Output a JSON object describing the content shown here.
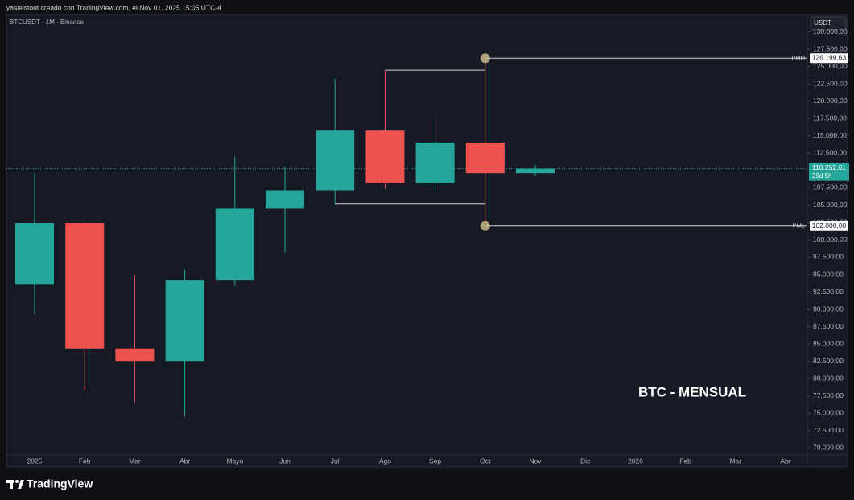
{
  "header": {
    "caption": "yasielstout creado con TradingView.com, el Nov 01, 2025 15:05 UTC-4",
    "symbol": "BTCUSDT · 1M · Binance"
  },
  "chart_data": {
    "type": "candlestick",
    "title": "BTC - MENSUAL",
    "y_axis_unit": "USDT",
    "categories": [
      "2025",
      "Feb",
      "Mar",
      "Abr",
      "Mayo",
      "Jun",
      "Jul",
      "Ago",
      "Sep",
      "Oct",
      "Nov",
      "Dic",
      "2026",
      "Feb",
      "Mar",
      "Abr"
    ],
    "open": [
      93576,
      102429,
      84350,
      82550,
      94172,
      104591,
      107135,
      115764,
      108246,
      114048,
      109608,
      null,
      null,
      null,
      null,
      null
    ],
    "high": [
      109588,
      102500,
      95000,
      95758,
      111980,
      110530,
      123218,
      124474,
      117900,
      126199.63,
      110800,
      null,
      null,
      null,
      null,
      null
    ],
    "low": [
      89256,
      78258,
      76606,
      74508,
      93377,
      98200,
      105250,
      107350,
      107270,
      102000,
      109200,
      null,
      null,
      null,
      null,
      null
    ],
    "close": [
      102429,
      84350,
      82550,
      94172,
      104591,
      107135,
      115764,
      108246,
      114048,
      109608,
      110252.61,
      null,
      null,
      null,
      null,
      null
    ],
    "up_color": "#26a69a",
    "down_color": "#ef5350",
    "ylim": [
      69000,
      132500
    ],
    "yticks": [
      {
        "value": 70000,
        "label": "70.000,00"
      },
      {
        "value": 72500,
        "label": "72.500,00"
      },
      {
        "value": 75000,
        "label": "75.000,00"
      },
      {
        "value": 77500,
        "label": "77.500,00"
      },
      {
        "value": 80000,
        "label": "80.000,00"
      },
      {
        "value": 82500,
        "label": "82.500,00"
      },
      {
        "value": 85000,
        "label": "85.000,00"
      },
      {
        "value": 87500,
        "label": "87.500,00"
      },
      {
        "value": 90000,
        "label": "90.000,00"
      },
      {
        "value": 92500,
        "label": "92.500,00"
      },
      {
        "value": 95000,
        "label": "95.000,00"
      },
      {
        "value": 97500,
        "label": "97.500,00"
      },
      {
        "value": 100000,
        "label": "100.000,00"
      },
      {
        "value": 102500,
        "label": "102.500,00"
      },
      {
        "value": 105000,
        "label": "105.000,00"
      },
      {
        "value": 107500,
        "label": "107.500,00"
      },
      {
        "value": 110000,
        "label": "110.000,00"
      },
      {
        "value": 112500,
        "label": "112.500,00"
      },
      {
        "value": 115000,
        "label": "115.000,00"
      },
      {
        "value": 117500,
        "label": "117.500,00"
      },
      {
        "value": 120000,
        "label": "120.000,00"
      },
      {
        "value": 122500,
        "label": "122.500,00"
      },
      {
        "value": 125000,
        "label": "125.000,00"
      },
      {
        "value": 127500,
        "label": "127.500,00"
      },
      {
        "value": 130000,
        "label": "130.000,00"
      }
    ],
    "grid": false,
    "levels": [
      {
        "name": "PMH",
        "value": 126199.63,
        "label": "126.199,63"
      },
      {
        "name": "PML",
        "value": 102000,
        "label": "102.000,00"
      }
    ],
    "last_price": {
      "value": 110252.61,
      "label": "110.252,61",
      "countdown": "29d 5h"
    }
  },
  "footer": {
    "brand": "TradingView"
  }
}
